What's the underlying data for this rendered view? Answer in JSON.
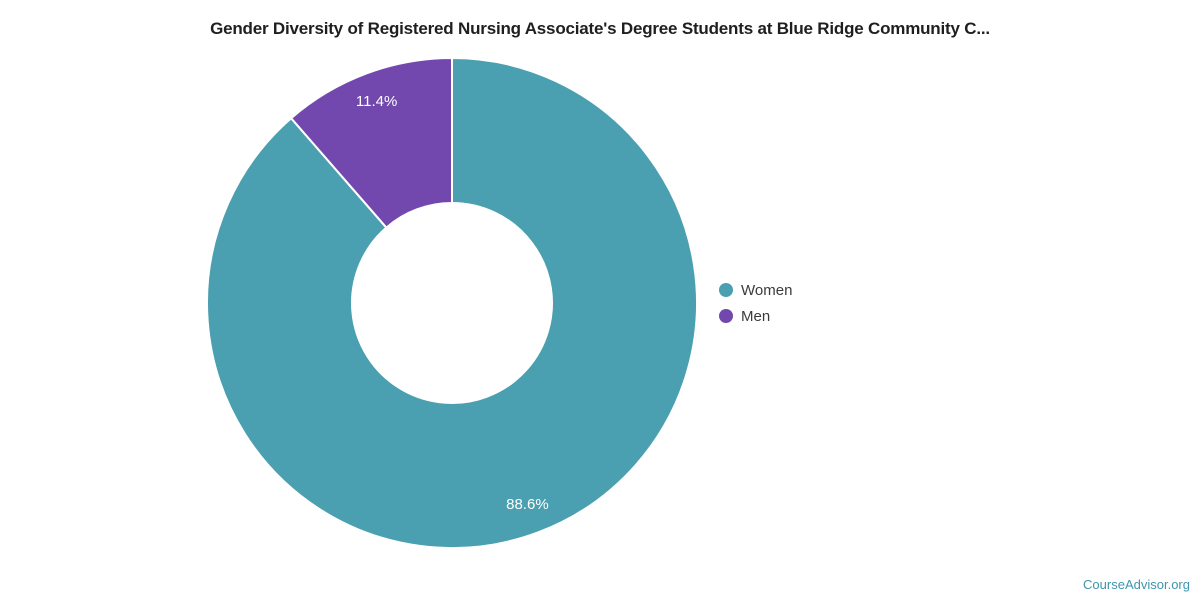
{
  "title": "Gender Diversity of Registered Nursing Associate's Degree Students at Blue Ridge Community C...",
  "chart_data": {
    "type": "pie",
    "subtype": "donut",
    "title": "Gender Diversity of Registered Nursing Associate's Degree Students at Blue Ridge Community C...",
    "categories": [
      "Women",
      "Men"
    ],
    "values": [
      88.6,
      11.4
    ],
    "unit": "%",
    "slice_labels": [
      "88.6%",
      "11.4%"
    ],
    "colors": [
      "#4A9FB0",
      "#7248AE"
    ],
    "slice_label_color": "#FFFFFF",
    "legend_position": "right",
    "start_angle_deg": 0,
    "direction": "clockwise",
    "donut_hole_ratio": 0.41
  },
  "legend": {
    "items": [
      {
        "label": "Women",
        "color": "#4A9FB0"
      },
      {
        "label": "Men",
        "color": "#7248AE"
      }
    ]
  },
  "footer": {
    "brand": "CourseAdvisor.org",
    "color": "#3E95AD"
  }
}
